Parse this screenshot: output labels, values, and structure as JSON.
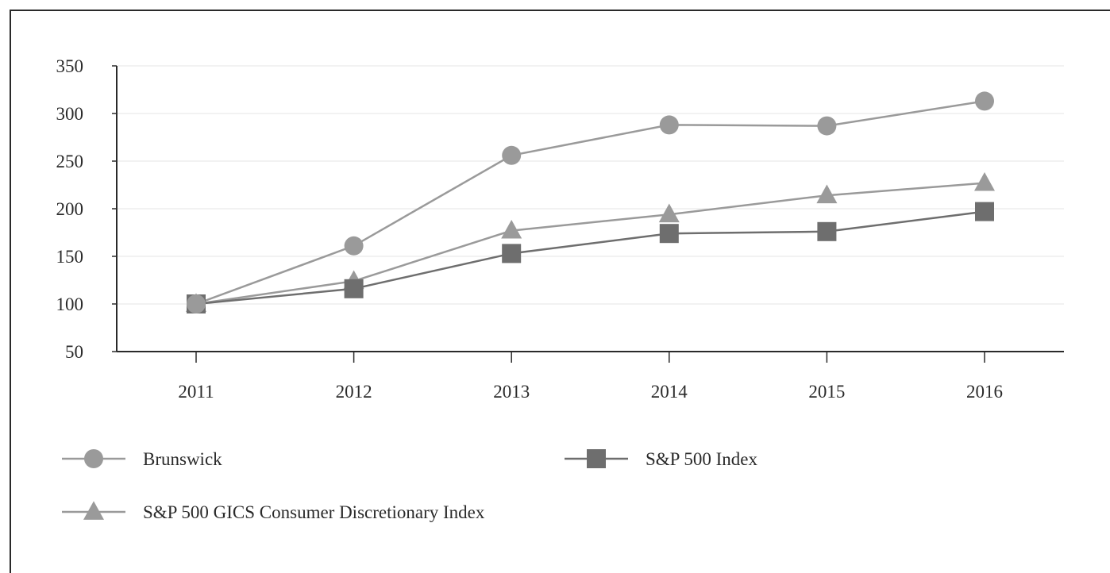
{
  "chart_data": {
    "type": "line",
    "title": "",
    "xlabel": "",
    "ylabel": "",
    "categories": [
      "2011",
      "2012",
      "2013",
      "2014",
      "2015",
      "2016"
    ],
    "ylim": [
      50,
      350
    ],
    "yticks": [
      "50",
      "100",
      "150",
      "200",
      "250",
      "300",
      "350"
    ],
    "grid": true,
    "legend_position": "bottom",
    "series": [
      {
        "name": "Brunswick",
        "marker": "circle",
        "color": "#9a9a9a",
        "values": [
          100,
          161,
          256,
          288,
          287,
          313
        ]
      },
      {
        "name": "S&P 500 Index",
        "marker": "square",
        "color": "#6e6e6e",
        "values": [
          100,
          116,
          153,
          174,
          176,
          197
        ]
      },
      {
        "name": "S&P 500 GICS Consumer Discretionary Index",
        "marker": "triangle",
        "color": "#9a9a9a",
        "values": [
          100,
          124,
          177,
          194,
          214,
          227
        ]
      }
    ]
  }
}
